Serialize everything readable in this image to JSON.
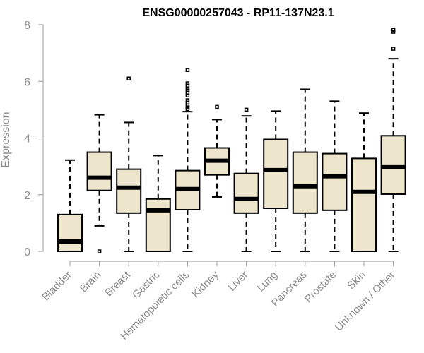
{
  "chart_data": {
    "type": "boxplot",
    "title": "ENSG00000257043 - RP11-137N23.1",
    "xlabel": "",
    "ylabel": "Expression",
    "ylim": [
      0,
      8
    ],
    "yticks": [
      "0",
      "2",
      "4",
      "6",
      "8"
    ],
    "colors": {
      "box_fill": "#ede6cd",
      "box_stroke": "#000000",
      "axis": "#999999",
      "label": "#8c8c8c"
    },
    "categories": [
      "Bladder",
      "Brain",
      "Breast",
      "Gastric",
      "Hematopoietic cells",
      "Kidney",
      "Liver",
      "Lung",
      "Pancreas",
      "Prostate",
      "Skin",
      "Unknown / Other"
    ],
    "boxes": [
      {
        "name": "Bladder",
        "min": 0,
        "q1": 0,
        "median": 0.35,
        "q3": 1.3,
        "max": 3.22,
        "outliers": []
      },
      {
        "name": "Brain",
        "min": 0.9,
        "q1": 2.15,
        "median": 2.6,
        "q3": 3.5,
        "max": 4.82,
        "outliers": [
          0
        ]
      },
      {
        "name": "Breast",
        "min": 0,
        "q1": 1.35,
        "median": 2.25,
        "q3": 2.9,
        "max": 4.55,
        "outliers": [
          6.1
        ]
      },
      {
        "name": "Gastric",
        "min": 0,
        "q1": 0,
        "median": 1.45,
        "q3": 1.85,
        "max": 3.38,
        "outliers": []
      },
      {
        "name": "Hematopoietic cells",
        "min": 0,
        "q1": 1.47,
        "median": 2.2,
        "q3": 2.85,
        "max": 4.93,
        "outliers": [
          5.02,
          5.08,
          5.15,
          5.25,
          5.33,
          5.5,
          5.6,
          5.68,
          5.75,
          5.85,
          5.93,
          6.4
        ]
      },
      {
        "name": "Kidney",
        "min": 1.92,
        "q1": 2.7,
        "median": 3.2,
        "q3": 3.65,
        "max": 4.65,
        "outliers": [
          5.1
        ]
      },
      {
        "name": "Liver",
        "min": 0,
        "q1": 1.35,
        "median": 1.85,
        "q3": 2.75,
        "max": 4.78,
        "outliers": [
          5.0
        ]
      },
      {
        "name": "Lung",
        "min": 0,
        "q1": 1.52,
        "median": 2.87,
        "q3": 3.95,
        "max": 4.95,
        "outliers": []
      },
      {
        "name": "Pancreas",
        "min": 0,
        "q1": 1.35,
        "median": 2.3,
        "q3": 3.5,
        "max": 5.72,
        "outliers": []
      },
      {
        "name": "Prostate",
        "min": 0,
        "q1": 1.45,
        "median": 2.65,
        "q3": 3.45,
        "max": 5.3,
        "outliers": []
      },
      {
        "name": "Skin",
        "min": 0,
        "q1": 0,
        "median": 2.1,
        "q3": 3.28,
        "max": 4.88,
        "outliers": []
      },
      {
        "name": "Unknown / Other",
        "min": 0,
        "q1": 2.02,
        "median": 2.97,
        "q3": 4.08,
        "max": 6.8,
        "outliers": [
          7.15,
          7.75,
          7.82
        ]
      }
    ]
  }
}
